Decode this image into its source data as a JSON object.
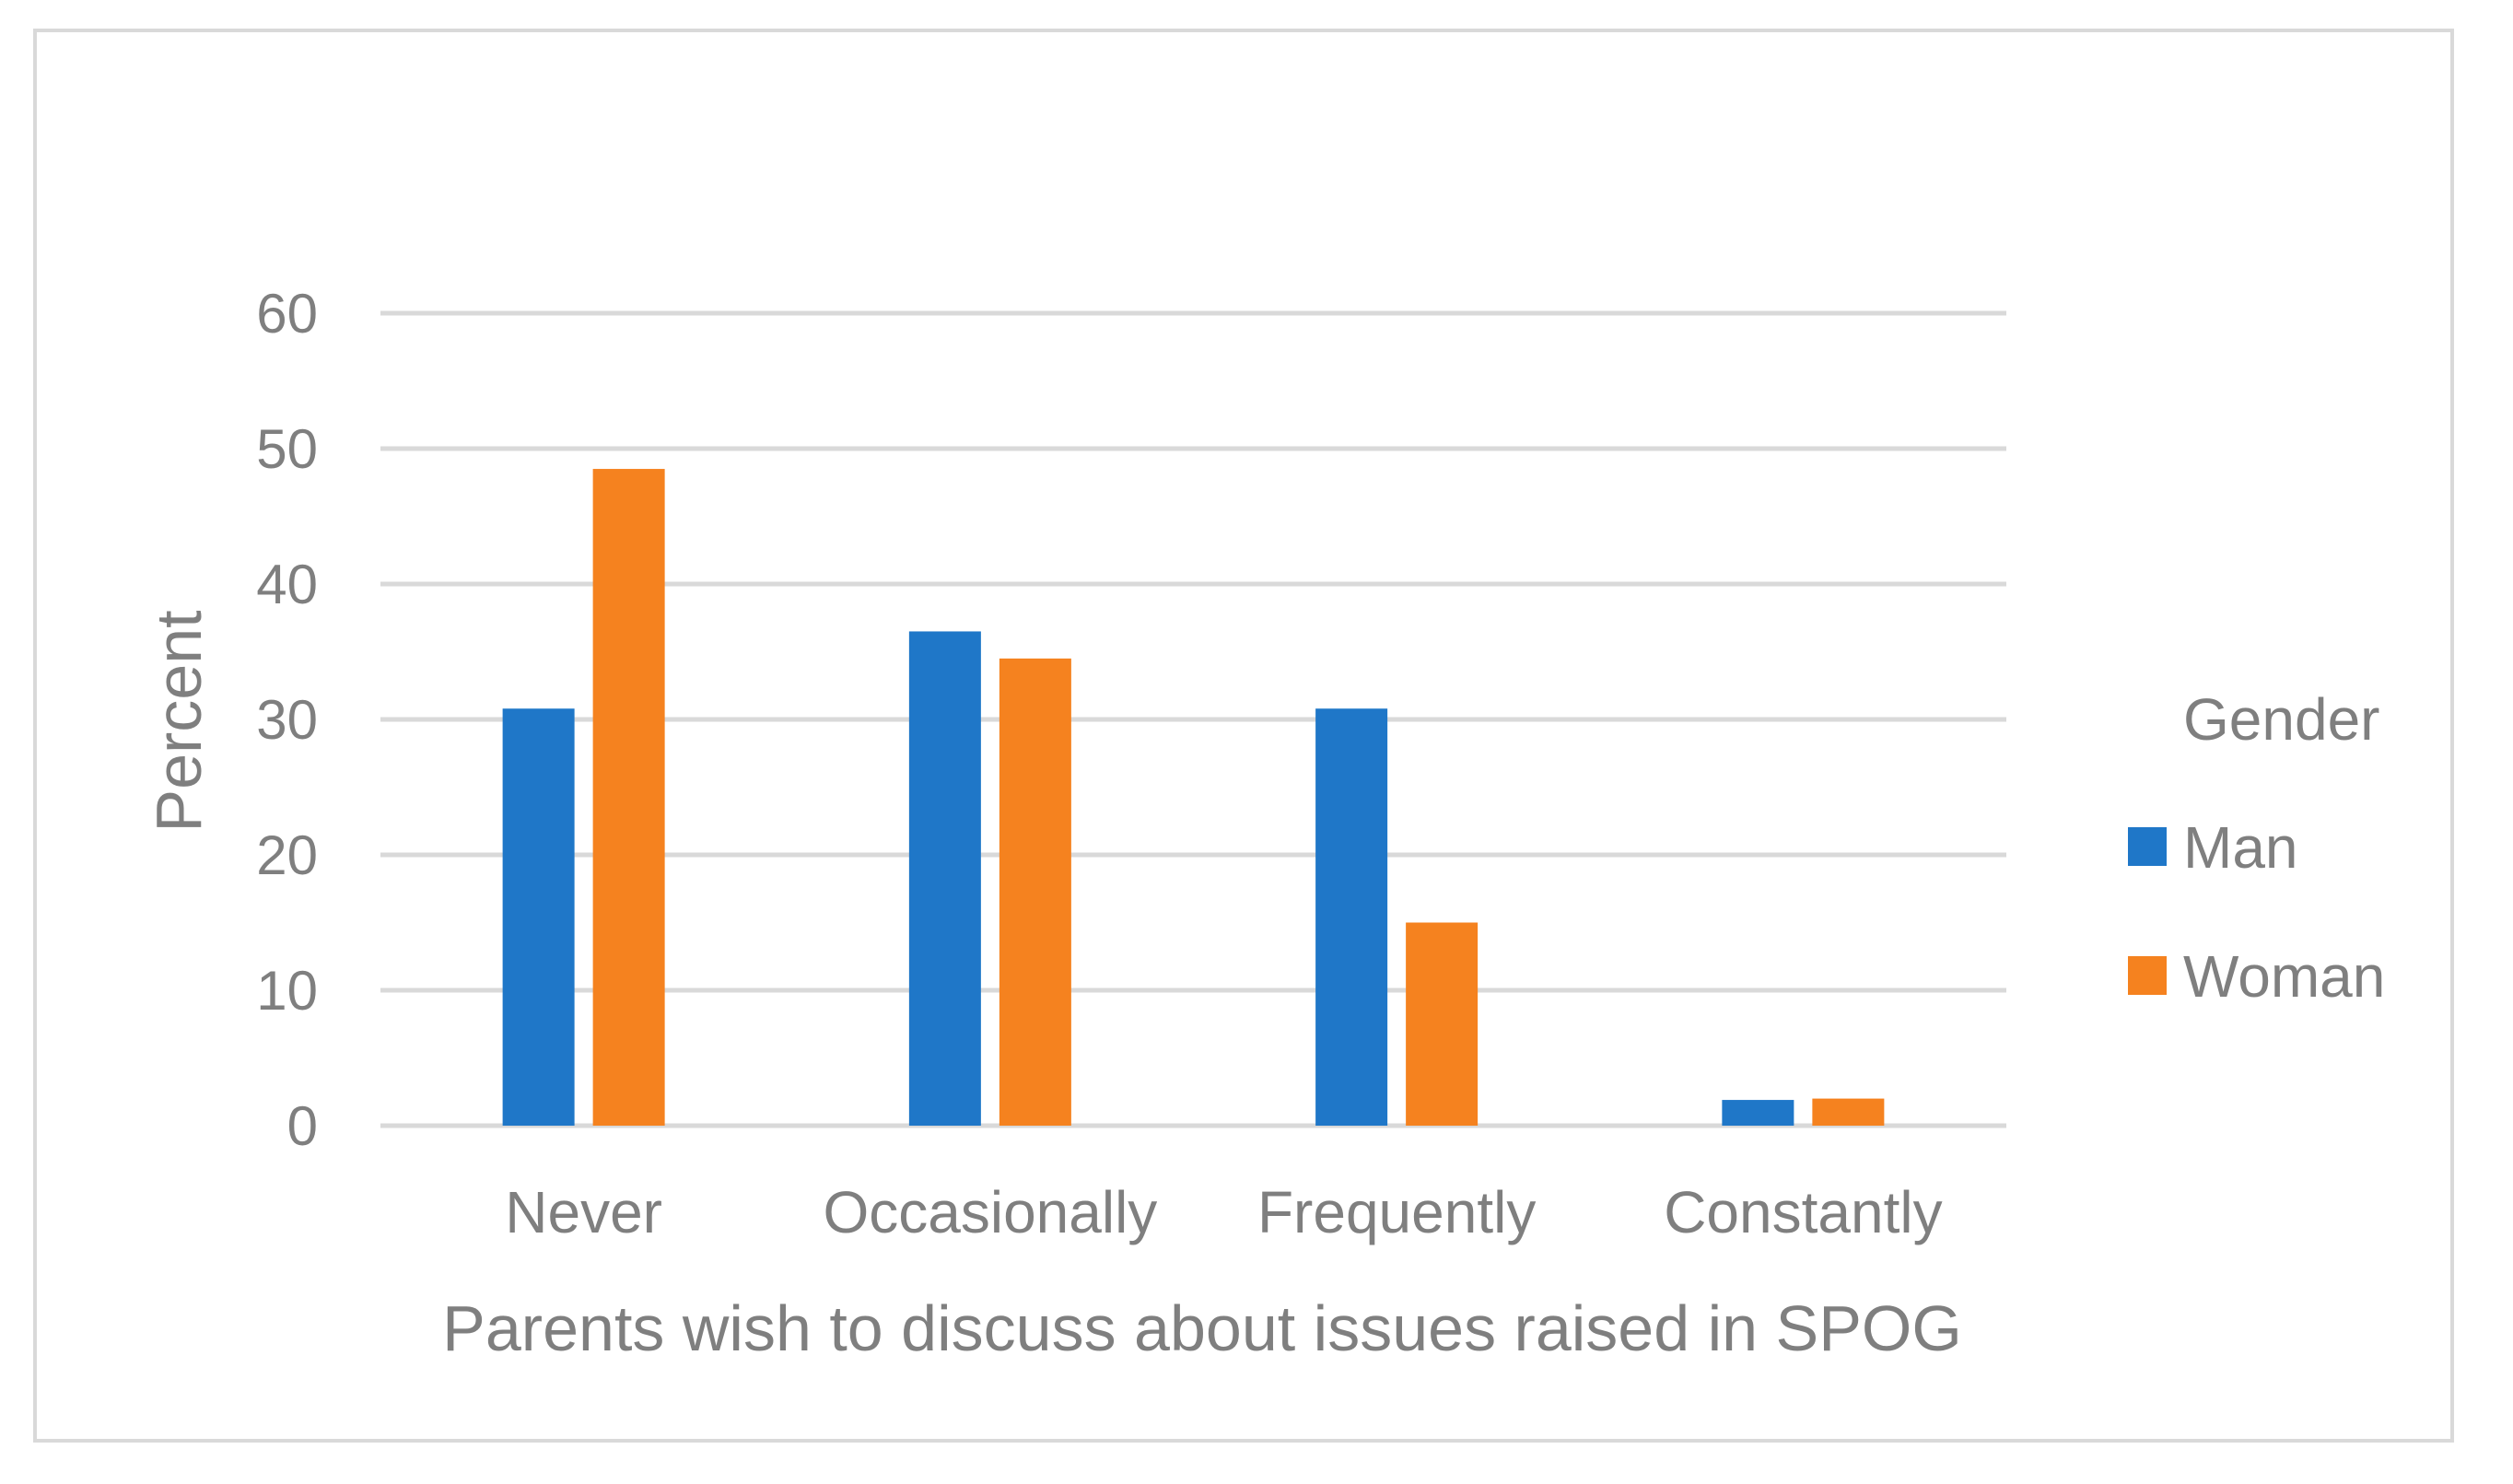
{
  "chart_data": {
    "type": "bar",
    "title": "",
    "xlabel": "Parents wish to discuss about issues raised in SPOG",
    "ylabel": "Percent",
    "categories": [
      "Never",
      "Occasionally",
      "Frequently",
      "Constantly"
    ],
    "series": [
      {
        "name": "Man",
        "color": "#1f77c8",
        "values": [
          30.8,
          36.5,
          30.8,
          1.9
        ]
      },
      {
        "name": "Woman",
        "color": "#f5821f",
        "values": [
          48.5,
          34.5,
          15.0,
          2.0
        ]
      }
    ],
    "yticks": [
      "0",
      "10",
      "20",
      "30",
      "40",
      "50",
      "60"
    ],
    "ylim": [
      0,
      60
    ],
    "grid": true,
    "legend": {
      "title": "Gender",
      "position": "right"
    }
  }
}
